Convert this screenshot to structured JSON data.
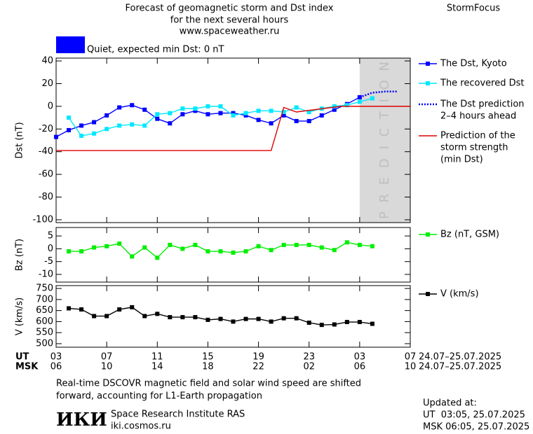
{
  "header": {
    "title_lines": [
      "Forecast of geomagnetic storm and Dst index",
      "for the next several hours",
      "www.spaceweather.ru"
    ],
    "brand": "StormFocus"
  },
  "status": {
    "color": "#0000ff",
    "text": "Quiet, expected min Dst: 0 nT"
  },
  "time_axis": {
    "xlim": [
      0,
      28
    ],
    "ut": {
      "label": "UT",
      "range": "24.07–25.07.2025",
      "ticks": [
        {
          "value": 0,
          "label": "03"
        },
        {
          "value": 4,
          "label": "07"
        },
        {
          "value": 8,
          "label": "11"
        },
        {
          "value": 12,
          "label": "15"
        },
        {
          "value": 16,
          "label": "19"
        },
        {
          "value": 20,
          "label": "23"
        },
        {
          "value": 24,
          "label": "03"
        },
        {
          "value": 28,
          "label": "07"
        }
      ]
    },
    "msk": {
      "label": "MSK",
      "range": "24.07–25.07.2025",
      "ticks": [
        {
          "value": 0,
          "label": "06"
        },
        {
          "value": 4,
          "label": "10"
        },
        {
          "value": 8,
          "label": "14"
        },
        {
          "value": 12,
          "label": "18"
        },
        {
          "value": 16,
          "label": "22"
        },
        {
          "value": 20,
          "label": "02"
        },
        {
          "value": 24,
          "label": "06"
        },
        {
          "value": 28,
          "label": "10"
        }
      ]
    }
  },
  "chart_data": [
    {
      "type": "line",
      "y_label": "Dst (nT)",
      "xlim": [
        0,
        28
      ],
      "ylim": [
        -102.5,
        42.5
      ],
      "yticks": [
        -100,
        -80,
        -60,
        -40,
        -20,
        0,
        20,
        40
      ],
      "x": [
        0,
        1,
        2,
        3,
        4,
        5,
        6,
        7,
        8,
        9,
        10,
        11,
        12,
        13,
        14,
        15,
        16,
        17,
        18,
        19,
        20,
        21,
        22,
        23,
        24,
        25,
        26,
        27
      ],
      "prediction_band": {
        "x": [
          24,
          28
        ],
        "label": "PREDICTION"
      },
      "series": [
        {
          "name": [
            "The Dst, Kyoto"
          ],
          "color": "#0000ff",
          "marker": true,
          "dash": false,
          "values": [
            -27,
            -21,
            -17,
            -14,
            -8,
            -1,
            1,
            -3,
            -11,
            -15,
            -7,
            -4,
            -7,
            -6,
            -6,
            -8,
            -12,
            -15,
            -8,
            -13,
            -13,
            -8,
            -3,
            2,
            8,
            null,
            null,
            null
          ]
        },
        {
          "name": [
            "The recovered Dst"
          ],
          "color": "#00e8ff",
          "marker": true,
          "dash": false,
          "values": [
            null,
            -10,
            -26,
            -24,
            -20,
            -17,
            -16,
            -17,
            -7,
            -6,
            -2,
            -2,
            0,
            0,
            -8,
            -6,
            -4,
            -4,
            -5,
            -1,
            -5,
            -2,
            0,
            1,
            4,
            7,
            null,
            null
          ]
        },
        {
          "name": [
            "The Dst prediction",
            "2–4 hours ahead"
          ],
          "color": "#0000ff",
          "marker": false,
          "dash": true,
          "values": [
            null,
            null,
            null,
            null,
            null,
            null,
            null,
            null,
            null,
            null,
            null,
            null,
            null,
            null,
            null,
            null,
            null,
            null,
            null,
            null,
            null,
            null,
            null,
            null,
            8,
            12,
            13,
            13
          ]
        },
        {
          "name": [
            "Prediction of the",
            "storm strength",
            "(min Dst)"
          ],
          "color": "#e00000",
          "marker": false,
          "dash": false,
          "x": [
            0,
            17,
            18,
            19,
            22.5,
            28
          ],
          "values": [
            -39,
            -39,
            -1,
            -5,
            0,
            0
          ]
        }
      ]
    },
    {
      "type": "line",
      "y_label": "Bz (nT)",
      "xlim": [
        0,
        28
      ],
      "ylim": [
        -13,
        8.3
      ],
      "yticks": [
        -10,
        -5,
        0,
        5
      ],
      "x": [
        1,
        2,
        3,
        4,
        5,
        6,
        7,
        8,
        9,
        10,
        11,
        12,
        13,
        14,
        15,
        16,
        17,
        18,
        19,
        20,
        21,
        22,
        23,
        24,
        25
      ],
      "series": [
        {
          "name": [
            "Bz (nT, GSM)"
          ],
          "color": "#00ee00",
          "marker": true,
          "dash": false,
          "values": [
            -1,
            -1,
            0.5,
            1,
            2,
            -3,
            0.5,
            -3.5,
            1.5,
            0,
            1.5,
            -1,
            -1,
            -1.5,
            -1,
            1,
            -0.5,
            1.5,
            1.5,
            1.5,
            0.5,
            -0.5,
            2.5,
            1.5,
            1
          ]
        }
      ]
    },
    {
      "type": "line",
      "y_label": "V (km/s)",
      "xlim": [
        0,
        28
      ],
      "ylim": [
        484,
        763
      ],
      "yticks": [
        500,
        550,
        600,
        650,
        700,
        750
      ],
      "x": [
        1,
        2,
        3,
        4,
        5,
        6,
        7,
        8,
        9,
        10,
        11,
        12,
        13,
        14,
        15,
        16,
        17,
        18,
        19,
        20,
        21,
        22,
        23,
        24,
        25
      ],
      "series": [
        {
          "name": [
            "V (km/s)"
          ],
          "color": "#000000",
          "marker": true,
          "dash": false,
          "values": [
            660,
            655,
            625,
            625,
            655,
            665,
            625,
            635,
            620,
            620,
            620,
            608,
            612,
            600,
            612,
            612,
            600,
            615,
            615,
            595,
            585,
            587,
            598,
            598,
            590
          ]
        }
      ]
    }
  ],
  "footer": {
    "note_lines": [
      "Real-time DSCOVR magnetic field and solar wind speed are shifted",
      "forward, accounting for L1-Earth propagation"
    ],
    "logo": "ИКИ",
    "institute": "Space Research Institute RAS",
    "site": "iki.cosmos.ru",
    "updated_label": "Updated at:",
    "updated_ut": "UT  03:05, 25.07.2025",
    "updated_msk": "MSK 06:05, 25.07.2025"
  }
}
